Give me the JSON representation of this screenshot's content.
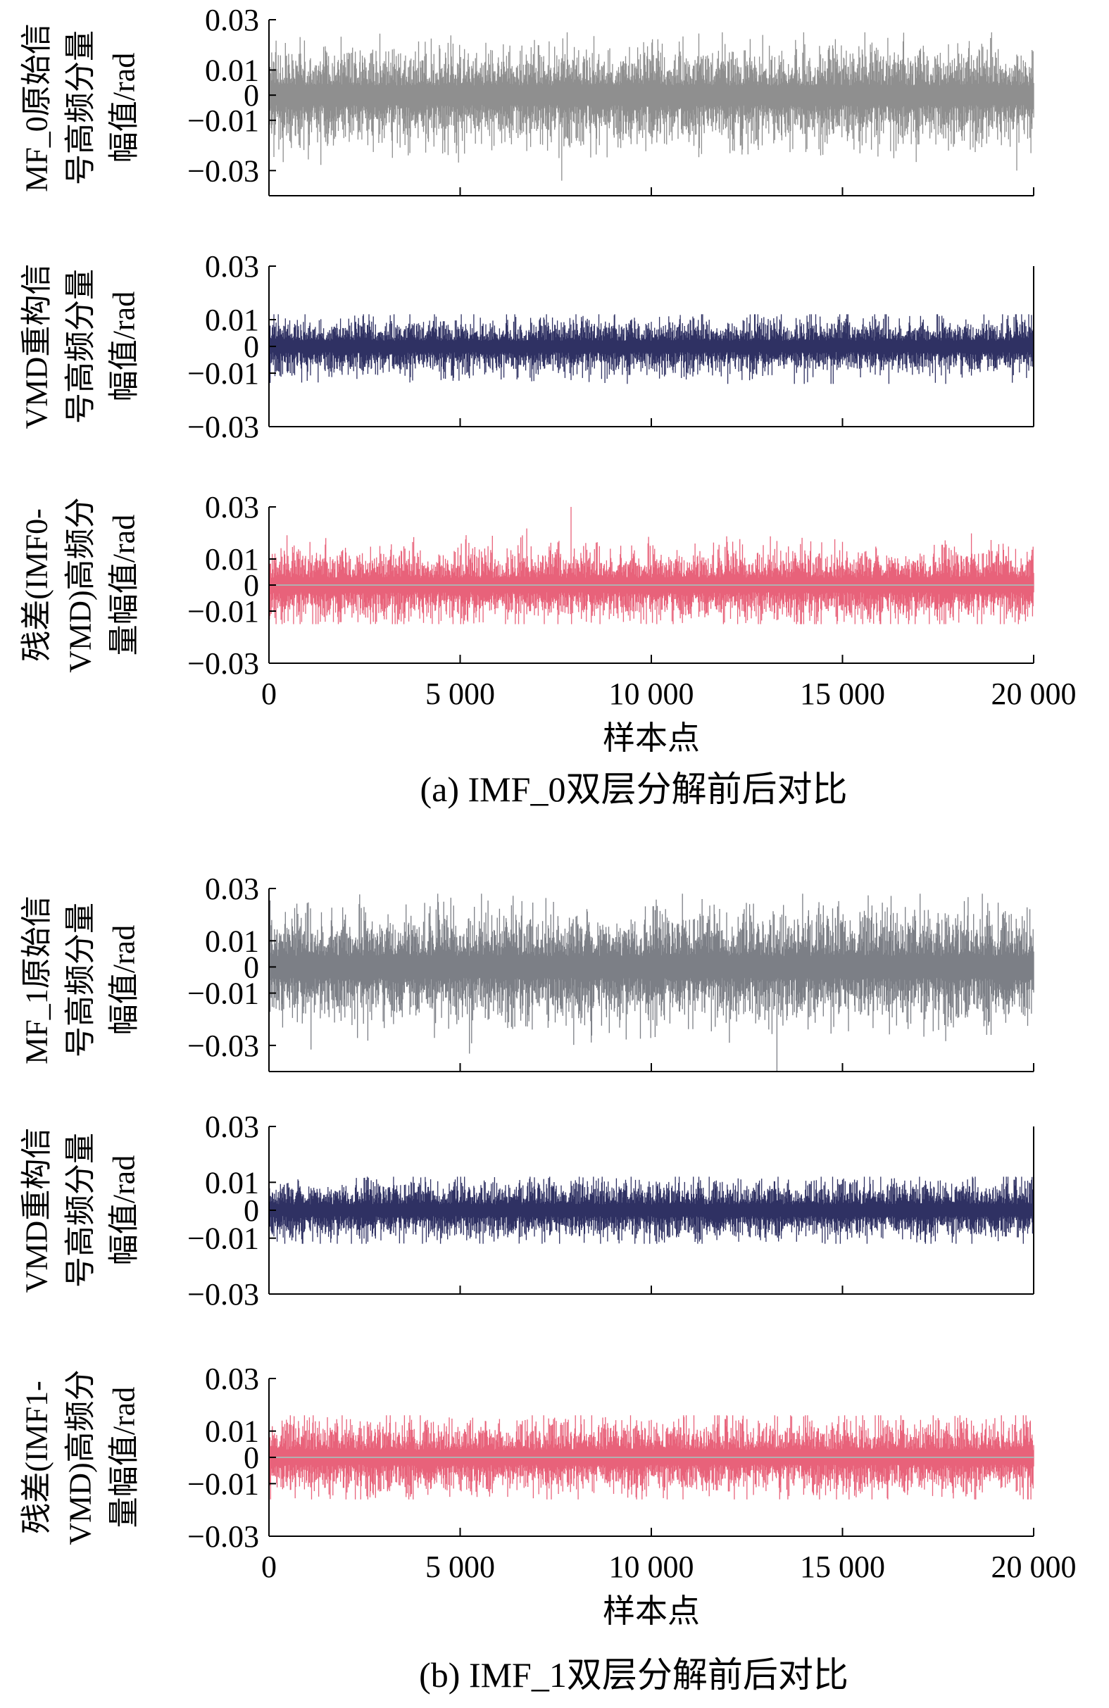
{
  "figure": {
    "panels": [
      {
        "caption": "(a) IMF_0双层分解前后对比",
        "xlabel": "样本点",
        "subplots": [
          {
            "ylabel_lines": [
              "MF_0原始信",
              "号高频分量",
              "幅值/rad"
            ]
          },
          {
            "ylabel_lines": [
              "VMD重构信",
              "号高频分量",
              "幅值/rad"
            ]
          },
          {
            "ylabel_lines": [
              "残差(IMF0-",
              "VMD)高频分",
              "量幅值/rad"
            ]
          }
        ]
      },
      {
        "caption": "(b) IMF_1双层分解前后对比",
        "xlabel": "样本点",
        "subplots": [
          {
            "ylabel_lines": [
              "MF_1原始信",
              "号高频分量",
              "幅值/rad"
            ]
          },
          {
            "ylabel_lines": [
              "VMD重构信",
              "号高频分量",
              "幅值/rad"
            ]
          },
          {
            "ylabel_lines": [
              "残差(IMF1-",
              "VMD)高频分",
              "量幅值/rad"
            ]
          }
        ]
      }
    ]
  },
  "chart_data": [
    {
      "type": "line",
      "panel": "a",
      "title": "",
      "xlabel": "样本点",
      "ylabel": "MF_0原始信号高频分量幅值/rad",
      "xlim": [
        0,
        20000
      ],
      "ylim": [
        -0.04,
        0.03
      ],
      "xticks": [
        0,
        5000,
        10000,
        15000,
        20000
      ],
      "xtick_labels": [
        "0",
        "5 000",
        "10 000",
        "15 000",
        "20 000"
      ],
      "yticks": [
        0.03,
        0.01,
        0,
        -0.01,
        -0.03
      ],
      "ytick_labels": [
        "0.03",
        "0.01",
        "0",
        "−0.01",
        "−0.03"
      ],
      "grid": false,
      "series": [
        {
          "color": "#8f8f8f",
          "n_points": 20000,
          "typical_amplitude": 0.011,
          "peak_max": 0.025,
          "peak_min": -0.034
        }
      ]
    },
    {
      "type": "line",
      "panel": "a",
      "title": "",
      "xlabel": "样本点",
      "ylabel": "VMD重构信号高频分量幅值/rad",
      "xlim": [
        0,
        20000
      ],
      "ylim": [
        -0.03,
        0.03
      ],
      "xticks": [
        0,
        5000,
        10000,
        15000,
        20000
      ],
      "xtick_labels": [
        "0",
        "5 000",
        "10 000",
        "15 000",
        "20 000"
      ],
      "yticks": [
        0.03,
        0.01,
        0,
        -0.01,
        -0.03
      ],
      "ytick_labels": [
        "0.03",
        "0.01",
        "0",
        "−0.01",
        "−0.03"
      ],
      "grid": false,
      "series": [
        {
          "color": "#2f3163",
          "n_points": 20000,
          "typical_amplitude": 0.006,
          "peak_max": 0.012,
          "peak_min": -0.014
        }
      ]
    },
    {
      "type": "line",
      "panel": "a",
      "title": "",
      "xlabel": "样本点",
      "ylabel": "残差(IMF0-VMD)高频分量幅值/rad",
      "xlim": [
        0,
        20000
      ],
      "ylim": [
        -0.03,
        0.03
      ],
      "xticks": [
        0,
        5000,
        10000,
        15000,
        20000
      ],
      "xtick_labels": [
        "0",
        "5 000",
        "10 000",
        "15 000",
        "20 000"
      ],
      "yticks": [
        0.03,
        0.01,
        0,
        -0.01,
        -0.03
      ],
      "ytick_labels": [
        "0.03",
        "0.01",
        "0",
        "−0.01",
        "−0.03"
      ],
      "grid": false,
      "series": [
        {
          "color": "#e8627a",
          "n_points": 20000,
          "typical_amplitude": 0.008,
          "peak_max": 0.03,
          "peak_min": -0.015
        },
        {
          "color": "#b0b0b0",
          "values": "constant 0"
        }
      ]
    },
    {
      "type": "line",
      "panel": "b",
      "title": "",
      "xlabel": "样本点",
      "ylabel": "MF_1原始信号高频分量幅值/rad",
      "xlim": [
        0,
        20000
      ],
      "ylim": [
        -0.04,
        0.03
      ],
      "xticks": [
        0,
        5000,
        10000,
        15000,
        20000
      ],
      "xtick_labels": [
        "0",
        "5 000",
        "10 000",
        "15 000",
        "20 000"
      ],
      "yticks": [
        0.03,
        0.01,
        0,
        -0.01,
        -0.03
      ],
      "ytick_labels": [
        "0.03",
        "0.01",
        "0",
        "−0.01",
        "−0.03"
      ],
      "grid": false,
      "series": [
        {
          "color": "#7c7f86",
          "n_points": 20000,
          "typical_amplitude": 0.012,
          "peak_max": 0.028,
          "peak_min": -0.04
        }
      ]
    },
    {
      "type": "line",
      "panel": "b",
      "title": "",
      "xlabel": "样本点",
      "ylabel": "VMD重构信号高频分量幅值/rad",
      "xlim": [
        0,
        20000
      ],
      "ylim": [
        -0.03,
        0.03
      ],
      "xticks": [
        0,
        5000,
        10000,
        15000,
        20000
      ],
      "xtick_labels": [
        "0",
        "5 000",
        "10 000",
        "15 000",
        "20 000"
      ],
      "yticks": [
        0.03,
        0.01,
        0,
        -0.01,
        -0.03
      ],
      "ytick_labels": [
        "0.03",
        "0.01",
        "0",
        "−0.01",
        "−0.03"
      ],
      "grid": false,
      "series": [
        {
          "color": "#2f3163",
          "n_points": 20000,
          "typical_amplitude": 0.006,
          "peak_max": 0.012,
          "peak_min": -0.012
        }
      ]
    },
    {
      "type": "line",
      "panel": "b",
      "title": "",
      "xlabel": "样本点",
      "ylabel": "残差(IMF1-VMD)高频分量幅值/rad",
      "xlim": [
        0,
        20000
      ],
      "ylim": [
        -0.03,
        0.03
      ],
      "xticks": [
        0,
        5000,
        10000,
        15000,
        20000
      ],
      "xtick_labels": [
        "0",
        "5 000",
        "10 000",
        "15 000",
        "20 000"
      ],
      "yticks": [
        0.03,
        0.01,
        0,
        -0.01,
        -0.03
      ],
      "ytick_labels": [
        "0.03",
        "0.01",
        "0",
        "−0.01",
        "−0.03"
      ],
      "grid": false,
      "series": [
        {
          "color": "#e8627a",
          "n_points": 20000,
          "typical_amplitude": 0.008,
          "peak_max": 0.016,
          "peak_min": -0.016
        },
        {
          "color": "#b0b0b0",
          "values": "constant 0"
        }
      ]
    }
  ]
}
